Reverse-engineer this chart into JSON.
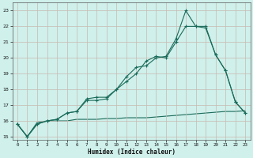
{
  "xlabel": "Humidex (Indice chaleur)",
  "bg_color": "#cff0eb",
  "grid_color": "#c8b8b0",
  "line_color": "#1a6b5a",
  "xlim": [
    -0.5,
    23.5
  ],
  "ylim": [
    14.8,
    23.5
  ],
  "xticks": [
    0,
    1,
    2,
    3,
    4,
    5,
    6,
    7,
    8,
    9,
    10,
    11,
    12,
    13,
    14,
    15,
    16,
    17,
    18,
    19,
    20,
    21,
    22,
    23
  ],
  "yticks": [
    15,
    16,
    17,
    18,
    19,
    20,
    21,
    22,
    23
  ],
  "series1_x": [
    0,
    1,
    2,
    3,
    4,
    5,
    6,
    7,
    8,
    9,
    10,
    11,
    12,
    13,
    14,
    15,
    16,
    17,
    18,
    19,
    20,
    21,
    22,
    23
  ],
  "series1_y": [
    15.8,
    15.0,
    15.8,
    16.0,
    16.1,
    16.5,
    16.6,
    17.4,
    17.5,
    17.5,
    18.0,
    18.8,
    19.4,
    19.5,
    20.0,
    20.1,
    21.2,
    23.0,
    22.0,
    22.0,
    20.2,
    19.2,
    17.2,
    16.5
  ],
  "series2_x": [
    0,
    1,
    2,
    3,
    4,
    5,
    6,
    7,
    8,
    9,
    10,
    11,
    12,
    13,
    14,
    15,
    16,
    17,
    18,
    19,
    20,
    21,
    22,
    23
  ],
  "series2_y": [
    15.8,
    15.0,
    15.8,
    16.0,
    16.1,
    16.5,
    16.6,
    17.3,
    17.3,
    17.4,
    18.0,
    18.5,
    19.0,
    19.8,
    20.1,
    20.0,
    21.0,
    22.0,
    22.0,
    21.9,
    20.2,
    19.2,
    17.2,
    16.5
  ],
  "series3_x": [
    0,
    1,
    2,
    3,
    4,
    5,
    6,
    7,
    8,
    9,
    10,
    11,
    12,
    13,
    14,
    15,
    16,
    17,
    18,
    19,
    20,
    21,
    22,
    23
  ],
  "series3_y": [
    15.8,
    15.0,
    15.9,
    16.0,
    16.0,
    16.0,
    16.1,
    16.1,
    16.1,
    16.15,
    16.15,
    16.2,
    16.2,
    16.2,
    16.25,
    16.3,
    16.35,
    16.4,
    16.45,
    16.5,
    16.55,
    16.6,
    16.6,
    16.65
  ]
}
